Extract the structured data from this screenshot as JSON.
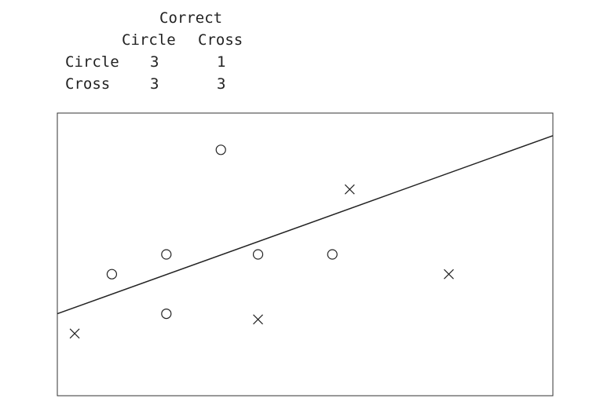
{
  "confusion_table": {
    "header": "Correct",
    "columns": [
      "Circle",
      "Cross"
    ],
    "rows": [
      {
        "label": "Circle",
        "values": [
          "3",
          "1"
        ]
      },
      {
        "label": "Cross",
        "values": [
          "3",
          "3"
        ]
      }
    ]
  },
  "chart_data": {
    "type": "scatter",
    "title": "",
    "xlabel": "",
    "ylabel": "",
    "xlim": [
      0,
      10
    ],
    "ylim": [
      0,
      10
    ],
    "grid": false,
    "series": [
      {
        "marker": "circle",
        "points": [
          [
            3.3,
            8.7
          ],
          [
            1.1,
            4.3
          ],
          [
            2.2,
            5.0
          ],
          [
            2.2,
            2.9
          ],
          [
            4.05,
            5.0
          ],
          [
            5.55,
            5.0
          ]
        ]
      },
      {
        "marker": "cross",
        "points": [
          [
            0.35,
            2.2
          ],
          [
            4.05,
            2.7
          ],
          [
            5.9,
            7.3
          ],
          [
            7.9,
            4.3
          ]
        ]
      }
    ],
    "decision_line": {
      "from": [
        0,
        2.9
      ],
      "to": [
        10,
        9.2
      ]
    },
    "colors": {
      "marks": "#222222",
      "frame": "#333333"
    }
  }
}
